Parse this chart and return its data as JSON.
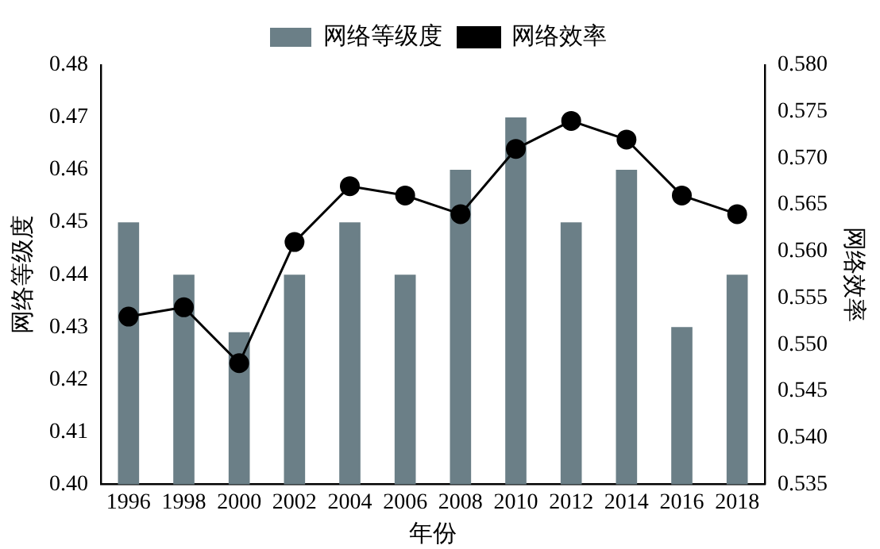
{
  "chart_data": {
    "type": "bar",
    "xlabel": "年份",
    "ylabel": "网络等级度",
    "y2label": "网络效率",
    "categories": [
      "1996",
      "1998",
      "2000",
      "2002",
      "2004",
      "2006",
      "2008",
      "2010",
      "2012",
      "2014",
      "2016",
      "2018"
    ],
    "series": [
      {
        "name": "网络等级度",
        "color": "#6b7f87",
        "values": [
          0.45,
          0.44,
          0.429,
          0.44,
          0.45,
          0.44,
          0.46,
          0.47,
          0.45,
          0.46,
          0.43,
          0.44
        ]
      },
      {
        "name": "网络效率",
        "type": "line",
        "axis": "y2",
        "color": "#000000",
        "marker": "circle",
        "values": [
          0.553,
          0.554,
          0.548,
          0.561,
          0.567,
          0.566,
          0.564,
          0.571,
          0.574,
          0.572,
          0.566,
          0.564
        ]
      }
    ],
    "ylim": [
      0.4,
      0.48
    ],
    "yticks": [
      {
        "value": 0.4,
        "label": "0.40"
      },
      {
        "value": 0.41,
        "label": "0.41"
      },
      {
        "value": 0.42,
        "label": "0.42"
      },
      {
        "value": 0.43,
        "label": "0.43"
      },
      {
        "value": 0.44,
        "label": "0.44"
      },
      {
        "value": 0.45,
        "label": "0.45"
      },
      {
        "value": 0.46,
        "label": "0.46"
      },
      {
        "value": 0.47,
        "label": "0.47"
      },
      {
        "value": 0.48,
        "label": "0.48"
      }
    ],
    "y2lim": [
      0.535,
      0.58
    ],
    "y2ticks": [
      {
        "value": 0.535,
        "label": "0.535"
      },
      {
        "value": 0.54,
        "label": "0.540"
      },
      {
        "value": 0.545,
        "label": "0.545"
      },
      {
        "value": 0.55,
        "label": "0.550"
      },
      {
        "value": 0.555,
        "label": "0.555"
      },
      {
        "value": 0.56,
        "label": "0.560"
      },
      {
        "value": 0.565,
        "label": "0.565"
      },
      {
        "value": 0.57,
        "label": "0.570"
      },
      {
        "value": 0.575,
        "label": "0.575"
      },
      {
        "value": 0.58,
        "label": "0.580"
      }
    ],
    "grid": false,
    "legend": "top"
  }
}
